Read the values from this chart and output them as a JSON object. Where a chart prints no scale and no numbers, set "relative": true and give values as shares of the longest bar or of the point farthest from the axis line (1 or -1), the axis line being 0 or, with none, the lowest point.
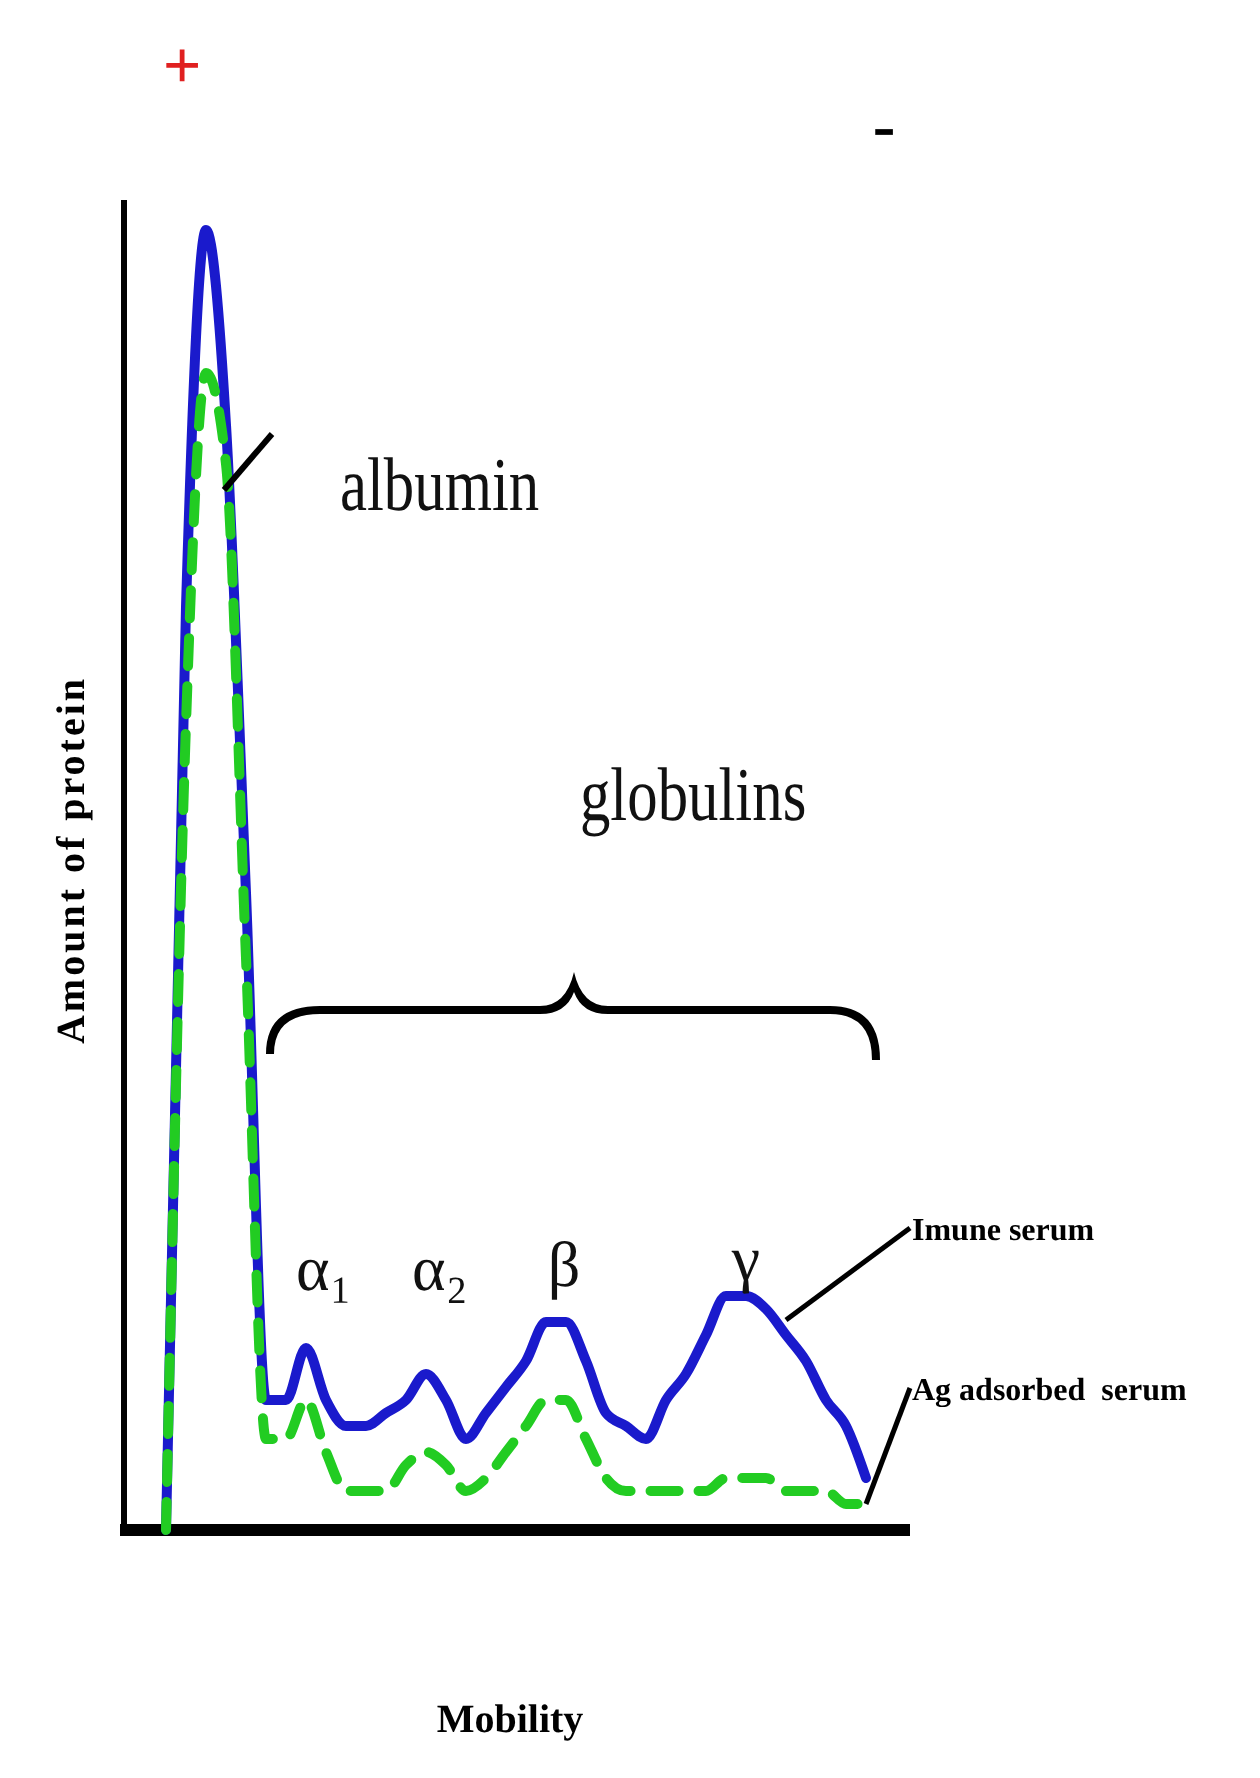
{
  "chart_data": {
    "type": "line",
    "relative": true,
    "xlabel": "Mobility",
    "ylabel": "Amount of protein",
    "annotations": [
      "+",
      "-",
      "albumin",
      "globulins",
      "α₁",
      "α₂",
      "β",
      "γ"
    ],
    "categories": [
      null,
      null,
      null,
      null,
      null,
      null,
      null,
      null,
      null,
      null,
      null,
      null,
      null,
      null,
      null,
      null,
      null,
      null,
      null,
      null,
      null,
      null,
      null,
      null,
      null,
      null,
      null,
      null,
      null,
      null,
      null,
      null,
      null,
      null,
      null,
      null
    ],
    "series": [
      {
        "name": "Imune serum",
        "color": "#1a1acc",
        "line_style": "solid",
        "values": [
          0,
          0.71,
          1.0,
          0.85,
          0.49,
          0.1,
          0.1,
          0.14,
          0.1,
          0.08,
          0.08,
          0.09,
          0.1,
          0.12,
          0.1,
          0.07,
          0.09,
          0.11,
          0.13,
          0.16,
          0.16,
          0.13,
          0.09,
          0.08,
          0.07,
          0.1,
          0.12,
          0.15,
          0.18,
          0.18,
          0.17,
          0.15,
          0.13,
          0.1,
          0.08,
          0.04
        ]
      },
      {
        "name": "Ag adsorbed  serum",
        "color": "#22cc22",
        "line_style": "dashed",
        "values": [
          0,
          0.62,
          0.89,
          0.82,
          0.44,
          0.07,
          0.07,
          0.1,
          0.06,
          0.03,
          0.03,
          0.03,
          0.05,
          0.06,
          0.05,
          0.03,
          0.04,
          0.06,
          0.08,
          0.1,
          0.1,
          0.07,
          0.04,
          0.03,
          0.03,
          0.03,
          0.03,
          0.03,
          0.04,
          0.04,
          0.04,
          0.03,
          0.03,
          0.03,
          0.02,
          0.02
        ]
      }
    ]
  }
}
